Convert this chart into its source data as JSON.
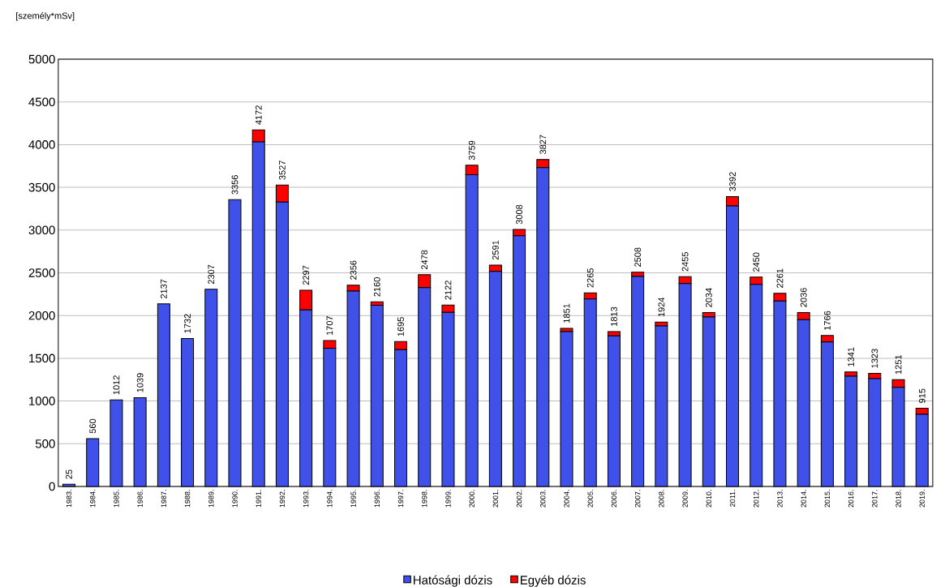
{
  "chart_data": {
    "type": "bar",
    "stacked": true,
    "ylabel": "[személy*mSv]",
    "categories": [
      "1983.",
      "1984.",
      "1985.",
      "1986.",
      "1987.",
      "1988.",
      "1989.",
      "1990.",
      "1991.",
      "1992.",
      "1993.",
      "1994.",
      "1995.",
      "1996.",
      "1997.",
      "1998.",
      "1999.",
      "2000.",
      "2001.",
      "2002.",
      "2003.",
      "2004.",
      "2005.",
      "2006.",
      "2007.",
      "2008.",
      "2009.",
      "2010.",
      "2011.",
      "2012.",
      "2013.",
      "2014.",
      "2015.",
      "2016.",
      "2017.",
      "2018.",
      "2019."
    ],
    "series": [
      {
        "name": "Hatósági dózis",
        "color": "#3f51e8",
        "values": [
          25,
          560,
          1012,
          1039,
          2137,
          1732,
          2307,
          3356,
          4032,
          3327,
          2067,
          1617,
          2286,
          2120,
          1600,
          2328,
          2037,
          3649,
          2516,
          2933,
          3732,
          1811,
          2195,
          1763,
          2458,
          1879,
          2375,
          1984,
          3282,
          2365,
          2171,
          1951,
          1691,
          1291,
          1263,
          1161,
          845
        ]
      },
      {
        "name": "Egyéb dózis",
        "color": "#ff0000",
        "values": [
          0,
          0,
          0,
          0,
          0,
          0,
          0,
          0,
          140,
          200,
          230,
          90,
          70,
          40,
          95,
          150,
          85,
          110,
          75,
          75,
          95,
          40,
          70,
          50,
          50,
          45,
          80,
          50,
          110,
          85,
          90,
          85,
          75,
          50,
          60,
          90,
          70
        ]
      }
    ],
    "totals": [
      "25",
      "560",
      "1012",
      "1039",
      "2137",
      "1732",
      "2307",
      "3356",
      "4172",
      "3527",
      "2297",
      "1707",
      "2356",
      "2160",
      "1695",
      "2478",
      "2122",
      "3759",
      "2591",
      "3008",
      "3827",
      "1851",
      "2265",
      "1813",
      "2508",
      "1924",
      "2455",
      "2034",
      "3392",
      "2450",
      "2261",
      "2036",
      "1766",
      "1341",
      "1323",
      "1251",
      "915"
    ],
    "ylim": [
      0,
      5000
    ],
    "yticks": [
      0,
      500,
      1000,
      1500,
      2000,
      2500,
      3000,
      3500,
      4000,
      4500,
      5000
    ],
    "grid": "y",
    "legend": "bottom"
  }
}
